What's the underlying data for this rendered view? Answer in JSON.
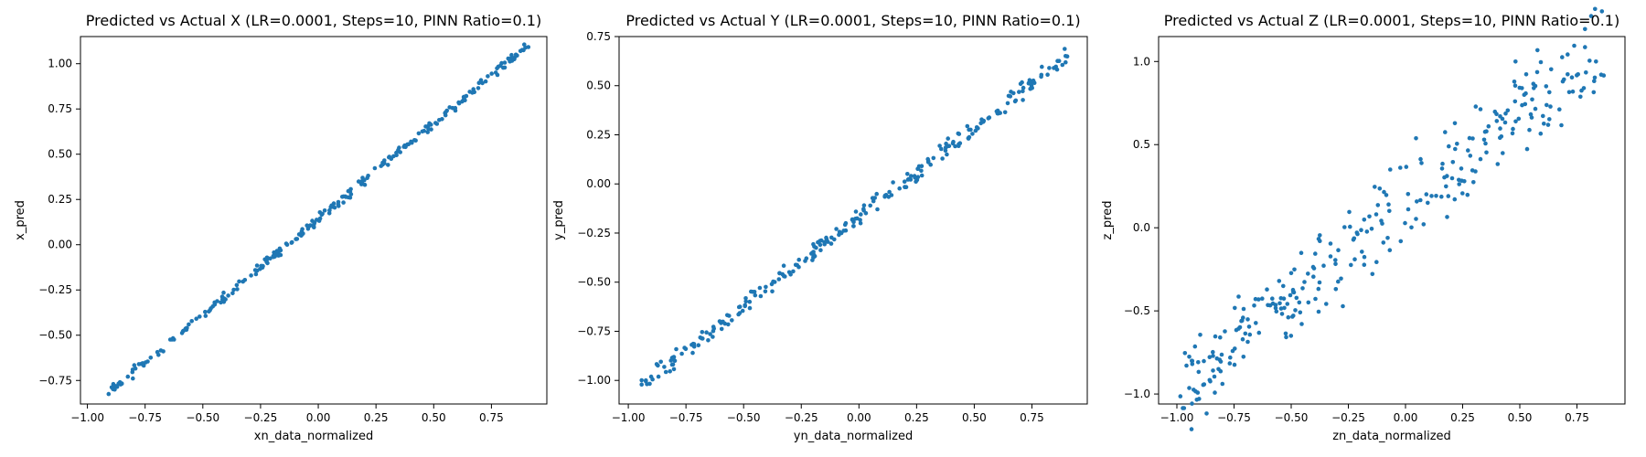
{
  "chart_data": [
    {
      "type": "scatter",
      "title": "Predicted vs Actual X (LR=0.0001, Steps=10, PINN Ratio=0.1)",
      "xlabel": "xn_data_normalized",
      "ylabel": "x_pred",
      "xlim": [
        -1.03,
        0.99
      ],
      "ylim": [
        -0.88,
        1.15
      ],
      "xticks": [
        -1.0,
        -0.75,
        -0.5,
        -0.25,
        0.0,
        0.25,
        0.5,
        0.75
      ],
      "xtick_labels": [
        "−1.00",
        "−0.75",
        "−0.50",
        "−0.25",
        "0.00",
        "0.25",
        "0.50",
        "0.75"
      ],
      "yticks": [
        -0.75,
        -0.5,
        -0.25,
        0.0,
        0.25,
        0.5,
        0.75,
        1.0
      ],
      "ytick_labels": [
        "−0.75",
        "−0.50",
        "−0.25",
        "0.00",
        "0.25",
        "0.50",
        "0.75",
        "1.00"
      ],
      "color": "#1f77b4",
      "fit": {
        "slope": 1.0573,
        "intercept": 0.1423
      },
      "x_range": [
        -0.93,
        0.91
      ],
      "noise": 0.012,
      "n_points": 260,
      "seed": 11
    },
    {
      "type": "scatter",
      "title": "Predicted vs Actual Y (LR=0.0001, Steps=10, PINN Ratio=0.1)",
      "xlabel": "yn_data_normalized",
      "ylabel": "y_pred",
      "xlim": [
        -1.04,
        0.99
      ],
      "ylim": [
        -1.12,
        0.75
      ],
      "xticks": [
        -1.0,
        -0.75,
        -0.5,
        -0.25,
        0.0,
        0.25,
        0.5,
        0.75
      ],
      "xtick_labels": [
        "−1.00",
        "−0.75",
        "−0.50",
        "−0.25",
        "0.00",
        "0.25",
        "0.50",
        "0.75"
      ],
      "yticks": [
        -1.0,
        -0.75,
        -0.5,
        -0.25,
        0.0,
        0.25,
        0.5,
        0.75
      ],
      "ytick_labels": [
        "−1.00",
        "−0.75",
        "−0.50",
        "−0.25",
        "0.00",
        "0.25",
        "0.50",
        "0.75"
      ],
      "color": "#1f77b4",
      "fit": {
        "slope": 0.9045,
        "intercept": -0.1677
      },
      "x_range": [
        -0.95,
        0.91
      ],
      "noise": 0.022,
      "n_points": 260,
      "seed": 23
    },
    {
      "type": "scatter",
      "title": "Predicted vs Actual Z (LR=0.0001, Steps=10, PINN Ratio=0.1)",
      "xlabel": "zn_data_normalized",
      "ylabel": "z_pred",
      "xlim": [
        -1.08,
        0.96
      ],
      "ylim": [
        -1.06,
        1.15
      ],
      "xticks": [
        -1.0,
        -0.75,
        -0.5,
        -0.25,
        0.0,
        0.25,
        0.5,
        0.75
      ],
      "xtick_labels": [
        "−1.00",
        "−0.75",
        "−0.50",
        "−0.25",
        "0.00",
        "0.25",
        "0.50",
        "0.75"
      ],
      "yticks": [
        -1.0,
        -0.5,
        0.0,
        0.5,
        1.0
      ],
      "ytick_labels": [
        "−1.0",
        "−0.5",
        "0.0",
        "0.5",
        "1.0"
      ],
      "color": "#1f77b4",
      "fit": {
        "slope": 1.1206,
        "intercept": 0.1264
      },
      "x_range": [
        -0.99,
        0.87
      ],
      "noise": 0.13,
      "n_points": 300,
      "seed": 37
    }
  ]
}
